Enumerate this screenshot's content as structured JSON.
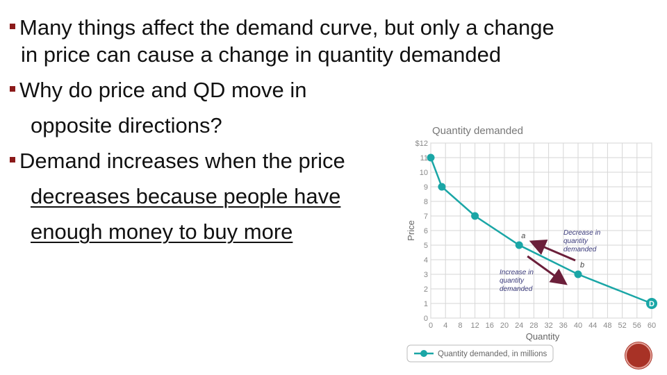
{
  "bullets": [
    {
      "lines": [
        "Many things affect the demand curve, but only a change",
        "in price can cause a change in quantity demanded"
      ]
    },
    {
      "lines": [
        "Why do price and QD move in",
        "opposite directions?"
      ]
    },
    {
      "lines": [
        "Demand increases when the price",
        "decreases because people have",
        "enough money to buy more"
      ]
    }
  ],
  "chart_data": {
    "type": "line",
    "title": "Quantity demanded",
    "xlabel": "Quantity",
    "ylabel": "Price",
    "xlim": [
      0,
      60
    ],
    "ylim": [
      0,
      12
    ],
    "xticks": [
      "0",
      "4",
      "8",
      "12",
      "16",
      "20",
      "24",
      "28",
      "32",
      "36",
      "40",
      "44",
      "48",
      "52",
      "56",
      "60"
    ],
    "yticks": [
      "0",
      "1",
      "2",
      "3",
      "4",
      "5",
      "6",
      "7",
      "8",
      "9",
      "10",
      "11",
      "$12"
    ],
    "series": [
      {
        "name": "Quantity demanded, in millions",
        "color": "#1aa6a6",
        "x": [
          0,
          3,
          12,
          24,
          40,
          60
        ],
        "y": [
          11,
          9,
          7,
          5,
          3,
          1
        ]
      }
    ],
    "point_labels": [
      {
        "text": "a",
        "x": 24,
        "y": 5
      },
      {
        "text": "b",
        "x": 40,
        "y": 3
      },
      {
        "text": "D",
        "x": 60,
        "y": 1
      }
    ],
    "annotations": [
      {
        "text": [
          "Decrease in",
          "quantity",
          "demanded"
        ],
        "arrow": "up-left"
      },
      {
        "text": [
          "Increase in",
          "quantity",
          "demanded"
        ],
        "arrow": "down-right"
      }
    ],
    "grid": true,
    "legend": "bottom-left"
  },
  "colors": {
    "accent": "#8b1a1a",
    "curve": "#1aa6a6",
    "arrow": "#6b1f3a"
  }
}
